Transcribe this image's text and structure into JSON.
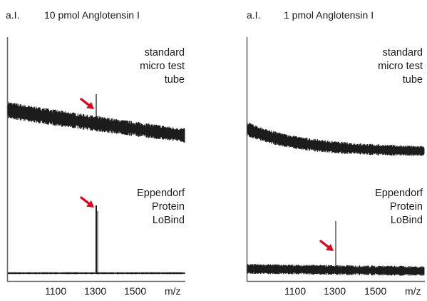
{
  "chart_data": [
    {
      "type": "line",
      "title": "10 pmol Anglotensin I",
      "ylabel": "a.I.",
      "xlabel": "m/z",
      "xlim": [
        960,
        1640
      ],
      "x_ticks": [
        "1100",
        "1300",
        "1500"
      ],
      "grid": false,
      "series": [
        {
          "panel": "upper",
          "annotation": [
            "standard",
            "micro test",
            "tube"
          ],
          "signal": "noisy decaying baseline with small peak",
          "peak_x": 1300,
          "arrow_x": 1300
        },
        {
          "panel": "lower",
          "annotation": [
            "Eppendorf",
            "Protein",
            "LoBind"
          ],
          "signal": "flat baseline with strong peak",
          "peak_x": 1300,
          "arrow_x": 1300
        }
      ]
    },
    {
      "type": "line",
      "title": "1 pmol Anglotensin I",
      "ylabel": "a.I.",
      "xlabel": "m/z",
      "xlim": [
        960,
        1640
      ],
      "x_ticks": [
        "1100",
        "1300",
        "1500"
      ],
      "grid": false,
      "series": [
        {
          "panel": "upper",
          "annotation": [
            "standard",
            "micro test",
            "tube"
          ],
          "signal": "noisy decaying baseline, no peak"
        },
        {
          "panel": "lower",
          "annotation": [
            "Eppendorf",
            "Protein",
            "LoBind"
          ],
          "signal": "noisy flat baseline with small peak",
          "peak_x": 1300,
          "arrow_x": 1300
        }
      ]
    }
  ],
  "colors": {
    "trace": "#1c1c1c",
    "axis": "#6a6a6a",
    "arrow": "#e0001b",
    "text": "#1a1a1a"
  }
}
